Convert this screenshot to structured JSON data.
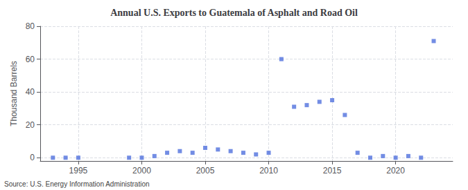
{
  "chart_data": {
    "type": "scatter",
    "title": "Annual U.S. Exports to Guatemala of Asphalt and Road Oil",
    "ylabel": "Thousand Barrels",
    "annotation": "Source: U.S. Energy Information Administration",
    "x": [
      1993,
      1994,
      1995,
      1999,
      2000,
      2001,
      2002,
      2003,
      2004,
      2005,
      2006,
      2007,
      2008,
      2009,
      2010,
      2011,
      2012,
      2013,
      2014,
      2015,
      2016,
      2017,
      2018,
      2019,
      2020,
      2021,
      2022,
      2023
    ],
    "values": [
      0,
      0,
      0,
      0,
      0,
      1,
      3,
      4,
      3,
      6,
      5,
      4,
      3,
      2,
      3,
      60,
      31,
      32,
      34,
      35,
      26,
      3,
      0,
      1,
      0,
      1,
      0,
      71
    ],
    "xlim": [
      1992,
      2024.5
    ],
    "xticks": [
      1995,
      2000,
      2005,
      2010,
      2015,
      2020
    ],
    "ylim": [
      -2,
      80
    ],
    "yticks": [
      0,
      20,
      40,
      60,
      80
    ],
    "grid": true,
    "marker": "square"
  }
}
